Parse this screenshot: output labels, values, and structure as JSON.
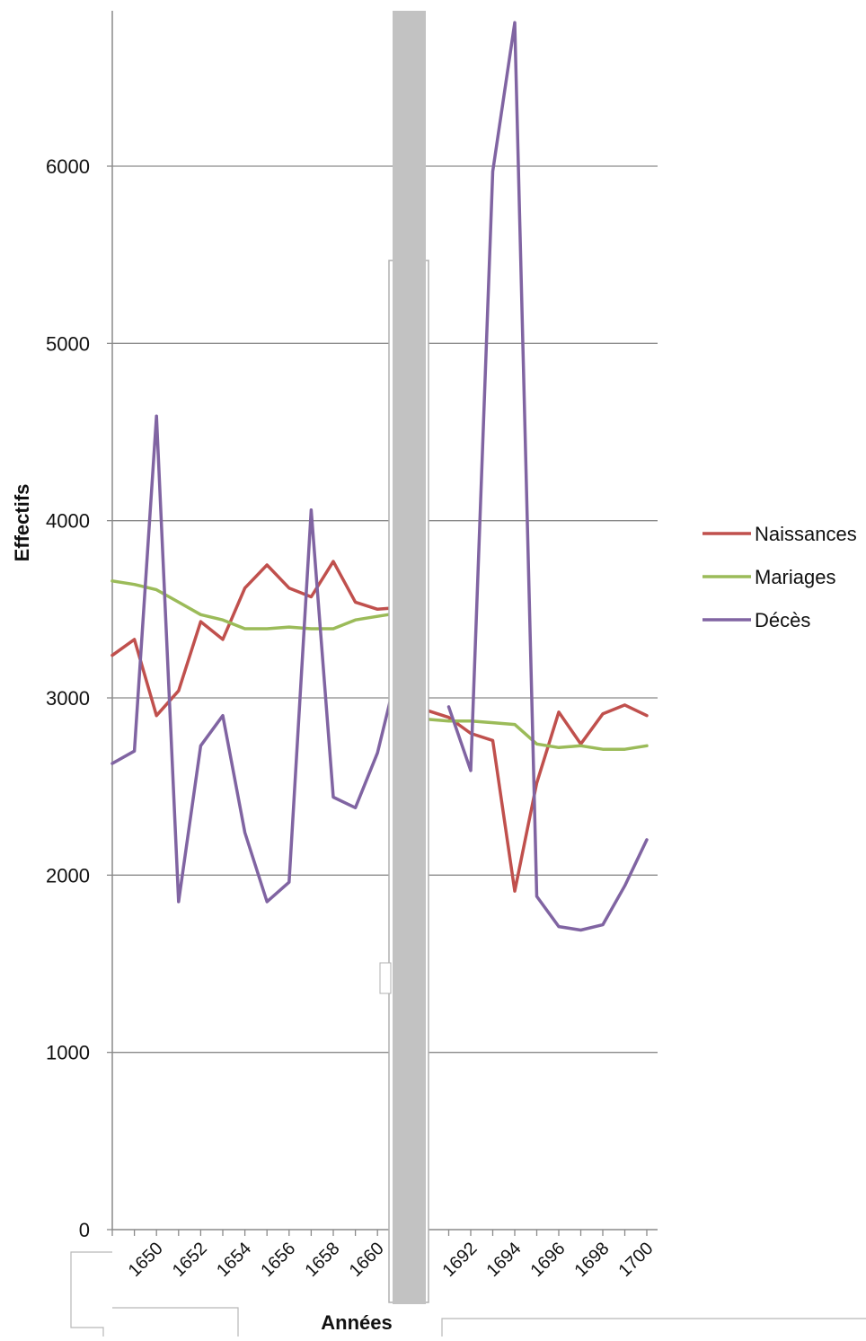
{
  "chart_data": {
    "type": "line",
    "title": "",
    "xlabel": "Années",
    "ylabel": "Effectifs",
    "ylim": [
      0,
      6900
    ],
    "yticks": [
      0,
      1000,
      2000,
      3000,
      4000,
      5000,
      6000
    ],
    "grid": "horizontal",
    "legend_position": "right",
    "axis_break": "between 1661 and 1690",
    "segments": [
      {
        "x": [
          1648,
          1649,
          1650,
          1651,
          1652,
          1653,
          1654,
          1655,
          1656,
          1657,
          1658,
          1659,
          1660,
          1661
        ],
        "xticks": [
          "1650",
          "1652",
          "1654",
          "1656",
          "1658",
          "1660"
        ]
      },
      {
        "x": [
          1690,
          1691,
          1692,
          1693,
          1694,
          1695,
          1696,
          1697,
          1698,
          1699,
          1700
        ],
        "xticks": [
          "1692",
          "1694",
          "1696",
          "1698",
          "1700"
        ]
      }
    ],
    "series": [
      {
        "name": "Naissances",
        "color": "#c0504d",
        "values": [
          [
            3240,
            3330,
            2900,
            3040,
            3430,
            3330,
            3620,
            3750,
            3620,
            3570,
            3770,
            3540,
            3500,
            3510
          ],
          [
            2930,
            2890,
            2800,
            2760,
            1910,
            2520,
            2920,
            2740,
            2910,
            2960,
            2900
          ]
        ]
      },
      {
        "name": "Mariages",
        "color": "#9bbb59",
        "values": [
          [
            3660,
            3640,
            3610,
            3540,
            3470,
            3440,
            3390,
            3390,
            3400,
            3390,
            3390,
            3440,
            3460,
            3480
          ],
          [
            2880,
            2870,
            2870,
            2860,
            2850,
            2740,
            2720,
            2730,
            2710,
            2710,
            2730
          ]
        ]
      },
      {
        "name": "Décès",
        "color": "#8064a2",
        "values": [
          [
            2630,
            2700,
            4590,
            1850,
            2730,
            2900,
            2240,
            1850,
            1960,
            4060,
            2440,
            2380,
            2690,
            3200
          ],
          [
            2950,
            2590,
            5970,
            6810,
            1880,
            1710,
            1690,
            1720,
            1940,
            2200
          ]
        ],
        "segment2_x": [
          1691,
          1692,
          1693,
          1694,
          1695,
          1696,
          1697,
          1698,
          1699,
          1700
        ]
      }
    ]
  }
}
